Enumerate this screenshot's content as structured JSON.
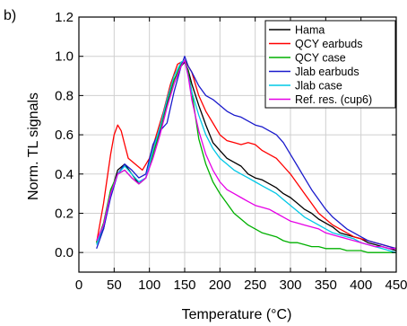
{
  "chart_data": {
    "type": "line",
    "panel_label": "b)",
    "xlabel": "Temperature (°C)",
    "ylabel": "Norm. TL signals",
    "xlim": [
      0,
      450
    ],
    "ylim": [
      -0.1,
      1.2
    ],
    "xticks": [
      0,
      50,
      100,
      150,
      200,
      250,
      300,
      350,
      400,
      450
    ],
    "yticks": [
      0.0,
      0.2,
      0.4,
      0.6,
      0.8,
      1.0,
      1.2
    ],
    "xtick_labels": [
      "0",
      "50",
      "100",
      "150",
      "200",
      "250",
      "300",
      "350",
      "400",
      "450"
    ],
    "ytick_labels": [
      "0.0",
      "0.2",
      "0.4",
      "0.6",
      "0.8",
      "1.0",
      "1.2"
    ],
    "grid": true,
    "legend_position": "top-right",
    "series": [
      {
        "name": "Hama",
        "color": "#000000",
        "x": [
          25,
          35,
          45,
          55,
          65,
          75,
          85,
          95,
          105,
          115,
          125,
          135,
          145,
          150,
          155,
          160,
          170,
          180,
          190,
          200,
          210,
          220,
          230,
          240,
          250,
          260,
          270,
          280,
          290,
          300,
          310,
          320,
          330,
          340,
          350,
          360,
          370,
          380,
          390,
          400,
          410,
          420,
          430,
          440,
          450
        ],
        "y": [
          0.05,
          0.12,
          0.3,
          0.42,
          0.45,
          0.4,
          0.35,
          0.38,
          0.5,
          0.62,
          0.76,
          0.88,
          0.95,
          0.97,
          0.93,
          0.86,
          0.75,
          0.65,
          0.56,
          0.52,
          0.48,
          0.46,
          0.44,
          0.4,
          0.38,
          0.37,
          0.35,
          0.33,
          0.3,
          0.28,
          0.25,
          0.22,
          0.2,
          0.17,
          0.15,
          0.13,
          0.1,
          0.09,
          0.08,
          0.07,
          0.05,
          0.04,
          0.03,
          0.02,
          0.01
        ]
      },
      {
        "name": "QCY earbuds",
        "color": "#ff0000",
        "x": [
          25,
          35,
          45,
          50,
          55,
          60,
          65,
          70,
          80,
          90,
          100,
          110,
          120,
          130,
          140,
          150,
          160,
          170,
          180,
          190,
          200,
          210,
          220,
          230,
          240,
          250,
          260,
          270,
          280,
          290,
          300,
          310,
          320,
          330,
          340,
          350,
          360,
          370,
          380,
          390,
          400,
          410,
          420,
          430,
          440,
          450
        ],
        "y": [
          0.05,
          0.25,
          0.5,
          0.6,
          0.65,
          0.62,
          0.55,
          0.48,
          0.45,
          0.42,
          0.48,
          0.6,
          0.72,
          0.86,
          0.96,
          0.98,
          0.92,
          0.8,
          0.72,
          0.66,
          0.6,
          0.57,
          0.56,
          0.55,
          0.56,
          0.55,
          0.52,
          0.5,
          0.48,
          0.44,
          0.4,
          0.35,
          0.3,
          0.25,
          0.2,
          0.17,
          0.14,
          0.12,
          0.1,
          0.08,
          0.07,
          0.06,
          0.05,
          0.04,
          0.03,
          0.02
        ]
      },
      {
        "name": "QCY case",
        "color": "#00b000",
        "x": [
          25,
          35,
          45,
          55,
          65,
          75,
          85,
          95,
          105,
          115,
          125,
          135,
          145,
          150,
          155,
          160,
          165,
          170,
          180,
          190,
          200,
          210,
          220,
          230,
          240,
          250,
          260,
          270,
          280,
          290,
          300,
          310,
          320,
          330,
          340,
          350,
          360,
          370,
          380,
          390,
          400,
          410,
          420,
          430,
          440,
          450
        ],
        "y": [
          0.05,
          0.15,
          0.32,
          0.4,
          0.42,
          0.38,
          0.35,
          0.38,
          0.5,
          0.62,
          0.75,
          0.88,
          0.96,
          0.98,
          0.92,
          0.82,
          0.7,
          0.58,
          0.45,
          0.36,
          0.3,
          0.25,
          0.2,
          0.17,
          0.14,
          0.12,
          0.1,
          0.09,
          0.08,
          0.06,
          0.05,
          0.05,
          0.04,
          0.03,
          0.03,
          0.02,
          0.02,
          0.02,
          0.01,
          0.01,
          0.01,
          0.0,
          0.0,
          0.0,
          0.0,
          0.0
        ]
      },
      {
        "name": "Jlab earbuds",
        "color": "#1a1acc",
        "x": [
          25,
          35,
          45,
          55,
          65,
          75,
          85,
          95,
          105,
          115,
          125,
          135,
          145,
          150,
          155,
          160,
          170,
          180,
          190,
          200,
          210,
          220,
          230,
          240,
          250,
          260,
          270,
          280,
          290,
          300,
          310,
          320,
          330,
          340,
          350,
          360,
          370,
          380,
          390,
          400,
          410,
          420,
          430,
          440,
          450
        ],
        "y": [
          0.02,
          0.12,
          0.28,
          0.4,
          0.45,
          0.42,
          0.38,
          0.4,
          0.55,
          0.62,
          0.66,
          0.82,
          0.95,
          1.0,
          0.95,
          0.92,
          0.85,
          0.8,
          0.78,
          0.75,
          0.72,
          0.7,
          0.69,
          0.67,
          0.65,
          0.64,
          0.62,
          0.6,
          0.56,
          0.5,
          0.44,
          0.38,
          0.32,
          0.27,
          0.22,
          0.18,
          0.15,
          0.12,
          0.1,
          0.08,
          0.06,
          0.05,
          0.04,
          0.03,
          0.02
        ]
      },
      {
        "name": "Jlab case",
        "color": "#00c8e6",
        "x": [
          25,
          35,
          45,
          55,
          65,
          75,
          85,
          95,
          105,
          115,
          125,
          135,
          145,
          150,
          155,
          160,
          170,
          180,
          190,
          200,
          210,
          220,
          230,
          240,
          250,
          260,
          270,
          280,
          290,
          300,
          310,
          320,
          330,
          340,
          350,
          360,
          370,
          380,
          390,
          400,
          410,
          420,
          430,
          440,
          450
        ],
        "y": [
          0.04,
          0.14,
          0.3,
          0.4,
          0.44,
          0.4,
          0.36,
          0.38,
          0.52,
          0.64,
          0.78,
          0.9,
          0.97,
          0.98,
          0.9,
          0.82,
          0.7,
          0.6,
          0.53,
          0.48,
          0.45,
          0.42,
          0.4,
          0.38,
          0.36,
          0.34,
          0.32,
          0.3,
          0.27,
          0.24,
          0.21,
          0.18,
          0.16,
          0.14,
          0.12,
          0.1,
          0.09,
          0.08,
          0.07,
          0.05,
          0.04,
          0.03,
          0.02,
          0.01,
          0.0
        ]
      },
      {
        "name": "Ref. res. (cup6)",
        "color": "#e600e6",
        "x": [
          25,
          35,
          45,
          55,
          65,
          75,
          85,
          95,
          105,
          115,
          125,
          135,
          145,
          150,
          155,
          160,
          170,
          180,
          190,
          200,
          210,
          220,
          230,
          240,
          250,
          260,
          270,
          280,
          290,
          300,
          310,
          320,
          330,
          340,
          350,
          360,
          370,
          380,
          390,
          400,
          410,
          420,
          430,
          440,
          450
        ],
        "y": [
          0.06,
          0.14,
          0.3,
          0.4,
          0.42,
          0.38,
          0.35,
          0.38,
          0.48,
          0.6,
          0.74,
          0.86,
          0.95,
          0.98,
          0.9,
          0.78,
          0.62,
          0.5,
          0.42,
          0.36,
          0.32,
          0.3,
          0.28,
          0.26,
          0.24,
          0.23,
          0.22,
          0.2,
          0.18,
          0.16,
          0.15,
          0.14,
          0.13,
          0.12,
          0.1,
          0.09,
          0.08,
          0.07,
          0.06,
          0.05,
          0.04,
          0.03,
          0.03,
          0.02,
          0.02
        ]
      }
    ]
  }
}
